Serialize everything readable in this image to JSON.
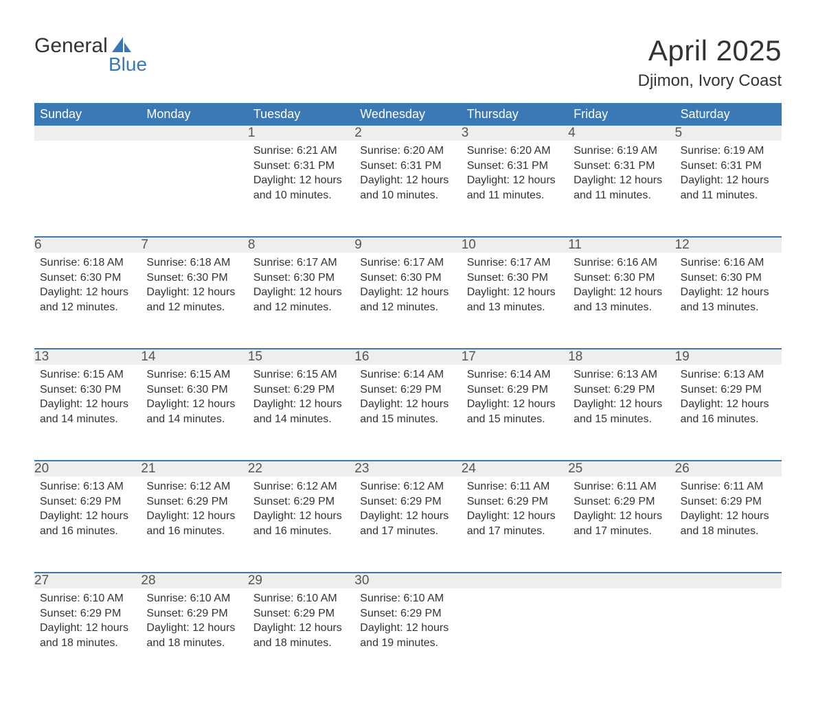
{
  "brand": {
    "word1": "General",
    "word2": "Blue",
    "accent_color": "#3a78b6"
  },
  "title": "April 2025",
  "location": "Djimon, Ivory Coast",
  "styling": {
    "header_bg": "#3a78b6",
    "header_text_color": "#ffffff",
    "daynum_bg": "#eeeeee",
    "row_divider_color": "#3a78b6",
    "body_text_color": "#333333",
    "title_fontsize_pt": 32,
    "location_fontsize_pt": 18,
    "header_fontsize_pt": 14,
    "daynum_fontsize_pt": 14,
    "body_fontsize_pt": 12,
    "columns": 7,
    "col_width_pct": 14.28
  },
  "weekdays": [
    "Sunday",
    "Monday",
    "Tuesday",
    "Wednesday",
    "Thursday",
    "Friday",
    "Saturday"
  ],
  "weeks": [
    [
      null,
      null,
      {
        "n": 1,
        "sunrise": "6:21 AM",
        "sunset": "6:31 PM",
        "daylight": "12 hours and 10 minutes."
      },
      {
        "n": 2,
        "sunrise": "6:20 AM",
        "sunset": "6:31 PM",
        "daylight": "12 hours and 10 minutes."
      },
      {
        "n": 3,
        "sunrise": "6:20 AM",
        "sunset": "6:31 PM",
        "daylight": "12 hours and 11 minutes."
      },
      {
        "n": 4,
        "sunrise": "6:19 AM",
        "sunset": "6:31 PM",
        "daylight": "12 hours and 11 minutes."
      },
      {
        "n": 5,
        "sunrise": "6:19 AM",
        "sunset": "6:31 PM",
        "daylight": "12 hours and 11 minutes."
      }
    ],
    [
      {
        "n": 6,
        "sunrise": "6:18 AM",
        "sunset": "6:30 PM",
        "daylight": "12 hours and 12 minutes."
      },
      {
        "n": 7,
        "sunrise": "6:18 AM",
        "sunset": "6:30 PM",
        "daylight": "12 hours and 12 minutes."
      },
      {
        "n": 8,
        "sunrise": "6:17 AM",
        "sunset": "6:30 PM",
        "daylight": "12 hours and 12 minutes."
      },
      {
        "n": 9,
        "sunrise": "6:17 AM",
        "sunset": "6:30 PM",
        "daylight": "12 hours and 12 minutes."
      },
      {
        "n": 10,
        "sunrise": "6:17 AM",
        "sunset": "6:30 PM",
        "daylight": "12 hours and 13 minutes."
      },
      {
        "n": 11,
        "sunrise": "6:16 AM",
        "sunset": "6:30 PM",
        "daylight": "12 hours and 13 minutes."
      },
      {
        "n": 12,
        "sunrise": "6:16 AM",
        "sunset": "6:30 PM",
        "daylight": "12 hours and 13 minutes."
      }
    ],
    [
      {
        "n": 13,
        "sunrise": "6:15 AM",
        "sunset": "6:30 PM",
        "daylight": "12 hours and 14 minutes."
      },
      {
        "n": 14,
        "sunrise": "6:15 AM",
        "sunset": "6:30 PM",
        "daylight": "12 hours and 14 minutes."
      },
      {
        "n": 15,
        "sunrise": "6:15 AM",
        "sunset": "6:29 PM",
        "daylight": "12 hours and 14 minutes."
      },
      {
        "n": 16,
        "sunrise": "6:14 AM",
        "sunset": "6:29 PM",
        "daylight": "12 hours and 15 minutes."
      },
      {
        "n": 17,
        "sunrise": "6:14 AM",
        "sunset": "6:29 PM",
        "daylight": "12 hours and 15 minutes."
      },
      {
        "n": 18,
        "sunrise": "6:13 AM",
        "sunset": "6:29 PM",
        "daylight": "12 hours and 15 minutes."
      },
      {
        "n": 19,
        "sunrise": "6:13 AM",
        "sunset": "6:29 PM",
        "daylight": "12 hours and 16 minutes."
      }
    ],
    [
      {
        "n": 20,
        "sunrise": "6:13 AM",
        "sunset": "6:29 PM",
        "daylight": "12 hours and 16 minutes."
      },
      {
        "n": 21,
        "sunrise": "6:12 AM",
        "sunset": "6:29 PM",
        "daylight": "12 hours and 16 minutes."
      },
      {
        "n": 22,
        "sunrise": "6:12 AM",
        "sunset": "6:29 PM",
        "daylight": "12 hours and 16 minutes."
      },
      {
        "n": 23,
        "sunrise": "6:12 AM",
        "sunset": "6:29 PM",
        "daylight": "12 hours and 17 minutes."
      },
      {
        "n": 24,
        "sunrise": "6:11 AM",
        "sunset": "6:29 PM",
        "daylight": "12 hours and 17 minutes."
      },
      {
        "n": 25,
        "sunrise": "6:11 AM",
        "sunset": "6:29 PM",
        "daylight": "12 hours and 17 minutes."
      },
      {
        "n": 26,
        "sunrise": "6:11 AM",
        "sunset": "6:29 PM",
        "daylight": "12 hours and 18 minutes."
      }
    ],
    [
      {
        "n": 27,
        "sunrise": "6:10 AM",
        "sunset": "6:29 PM",
        "daylight": "12 hours and 18 minutes."
      },
      {
        "n": 28,
        "sunrise": "6:10 AM",
        "sunset": "6:29 PM",
        "daylight": "12 hours and 18 minutes."
      },
      {
        "n": 29,
        "sunrise": "6:10 AM",
        "sunset": "6:29 PM",
        "daylight": "12 hours and 18 minutes."
      },
      {
        "n": 30,
        "sunrise": "6:10 AM",
        "sunset": "6:29 PM",
        "daylight": "12 hours and 19 minutes."
      },
      null,
      null,
      null
    ]
  ],
  "labels": {
    "sunrise": "Sunrise:",
    "sunset": "Sunset:",
    "daylight": "Daylight:"
  }
}
